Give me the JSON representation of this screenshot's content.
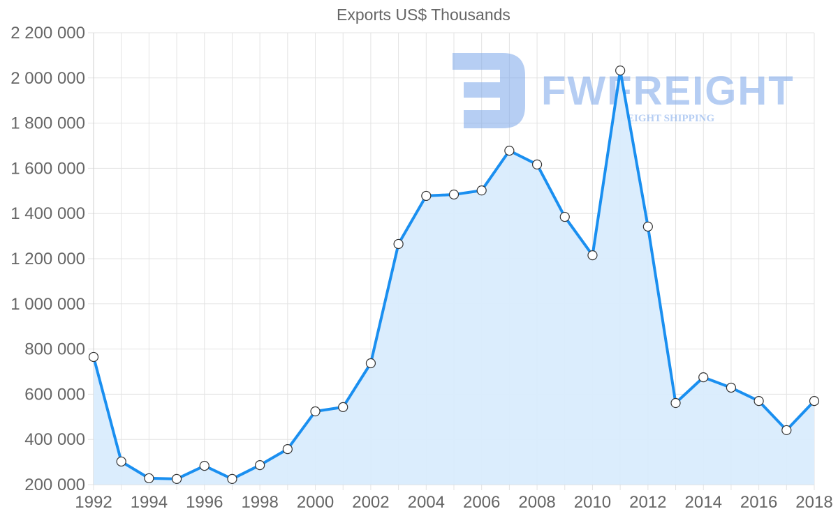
{
  "chart_data": {
    "type": "area",
    "title": "Exports US$ Thousands",
    "xlabel": "",
    "ylabel": "",
    "x": [
      1992,
      1993,
      1994,
      1995,
      1996,
      1997,
      1998,
      1999,
      2000,
      2001,
      2002,
      2003,
      2004,
      2005,
      2006,
      2007,
      2008,
      2009,
      2010,
      2011,
      2012,
      2013,
      2014,
      2015,
      2016,
      2017,
      2018
    ],
    "series": [
      {
        "name": "Exports US$ Thousands",
        "values": [
          765000,
          302000,
          228000,
          225000,
          283000,
          225000,
          286000,
          357000,
          524000,
          543000,
          737000,
          1265000,
          1478000,
          1484000,
          1502000,
          1678000,
          1617000,
          1385000,
          1215000,
          2033000,
          1342000,
          561000,
          675000,
          629000,
          570000,
          441000,
          570000
        ]
      }
    ],
    "ylim": [
      200000,
      2200000
    ],
    "y_ticks": [
      "2 200 000",
      "2 000 000",
      "1 800 000",
      "1 600 000",
      "1 400 000",
      "1 200 000",
      "1 000 000",
      "800 000",
      "600 000",
      "400 000",
      "200 000"
    ],
    "x_ticks": [
      "1992",
      "1994",
      "1996",
      "1998",
      "2000",
      "2002",
      "2004",
      "2006",
      "2008",
      "2010",
      "2012",
      "2014",
      "2016",
      "2018"
    ],
    "grid": true,
    "legend": "none",
    "colors": {
      "line": "#1a8ff0",
      "fill": "#d9ecfd",
      "point_fill": "#ffffff",
      "point_stroke": "#333333",
      "grid": "#e3e3e3"
    }
  },
  "watermark": {
    "brand": "FWFREIGHT",
    "tagline": "FREIGHT SHIPPING"
  }
}
